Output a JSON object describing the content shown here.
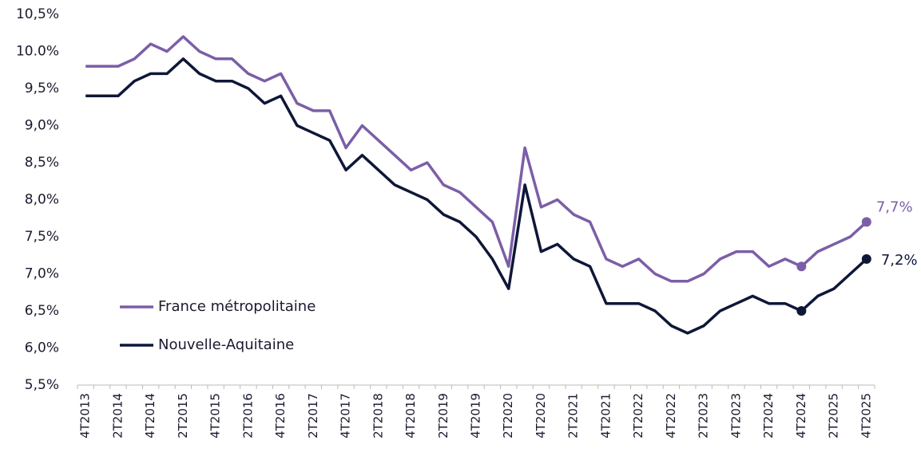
{
  "chart_data": {
    "type": "line",
    "categories": [
      "4T2013",
      null,
      "2T2014",
      null,
      "4T2014",
      null,
      "2T2015",
      null,
      "4T2015",
      null,
      "2T2016",
      null,
      "4T2016",
      null,
      "2T2017",
      null,
      "4T2017",
      null,
      "2T2018",
      null,
      "4T2018",
      null,
      "2T2019",
      null,
      "4T2019",
      null,
      "2T2020",
      null,
      "4T2020",
      null,
      "2T2021",
      null,
      "4T2021",
      null,
      "2T2022",
      null,
      "4T2022",
      null,
      "2T2023",
      null,
      "4T2023",
      null,
      "2T2024",
      null,
      "4T2024",
      null,
      "2T2025",
      null,
      "4T2025"
    ],
    "series": [
      {
        "name": "France métropolitaine",
        "color": "#7b5ea7",
        "values": [
          9.8,
          9.8,
          9.8,
          9.9,
          10.1,
          10.0,
          10.2,
          10.0,
          9.9,
          9.9,
          9.7,
          9.6,
          9.7,
          9.3,
          9.2,
          9.2,
          8.7,
          9.0,
          8.8,
          8.6,
          8.4,
          8.5,
          8.2,
          8.1,
          7.9,
          7.7,
          7.1,
          8.7,
          7.9,
          8.0,
          7.8,
          7.7,
          7.2,
          7.1,
          7.2,
          7.0,
          6.9,
          6.9,
          7.0,
          7.2,
          7.3,
          7.3,
          7.1,
          7.2,
          7.1,
          7.3,
          7.4,
          7.5,
          7.7
        ],
        "value_labels": [
          null,
          null,
          null,
          null,
          null,
          null,
          null,
          null,
          null,
          null,
          null,
          null,
          null,
          null,
          null,
          null,
          null,
          null,
          null,
          null,
          null,
          null,
          null,
          null,
          null,
          null,
          null,
          null,
          null,
          null,
          null,
          null,
          null,
          null,
          null,
          null,
          null,
          null,
          null,
          null,
          null,
          null,
          null,
          null,
          null,
          null,
          null,
          null,
          "7,7%"
        ]
      },
      {
        "name": "Nouvelle-Aquitaine",
        "color": "#0f1738",
        "values": [
          9.4,
          9.4,
          9.4,
          9.6,
          9.7,
          9.7,
          9.9,
          9.7,
          9.6,
          9.6,
          9.5,
          9.3,
          9.4,
          9.0,
          8.9,
          8.8,
          8.4,
          8.6,
          8.4,
          8.2,
          8.1,
          8.0,
          7.8,
          7.7,
          7.5,
          7.2,
          6.8,
          8.2,
          7.3,
          7.4,
          7.2,
          7.1,
          6.6,
          6.6,
          6.6,
          6.5,
          6.3,
          6.2,
          6.3,
          6.5,
          6.6,
          6.7,
          6.6,
          6.6,
          6.5,
          6.7,
          6.8,
          7.0,
          7.2
        ],
        "value_labels": [
          null,
          null,
          null,
          null,
          null,
          null,
          null,
          null,
          null,
          null,
          null,
          null,
          null,
          null,
          null,
          null,
          null,
          null,
          null,
          null,
          null,
          null,
          null,
          null,
          null,
          null,
          null,
          null,
          null,
          null,
          null,
          null,
          null,
          null,
          null,
          null,
          null,
          null,
          null,
          null,
          null,
          null,
          null,
          null,
          null,
          null,
          null,
          null,
          "7,2%"
        ]
      }
    ],
    "highlight": [
      "4T2024",
      "4T2025"
    ],
    "ylim": [
      5.5,
      10.5
    ],
    "yticks": [
      {
        "value": 5.5,
        "label": "5,5%"
      },
      {
        "value": 6.0,
        "label": "6,0%"
      },
      {
        "value": 6.5,
        "label": "6,5%"
      },
      {
        "value": 7.0,
        "label": "7,0%"
      },
      {
        "value": 7.5,
        "label": "7,5%"
      },
      {
        "value": 8.0,
        "label": "8,0%"
      },
      {
        "value": 8.5,
        "label": "8,5%"
      },
      {
        "value": 9.0,
        "label": "9,0%"
      },
      {
        "value": 9.5,
        "label": "9,5%"
      },
      {
        "value": 10.0,
        "label": "10.0%"
      },
      {
        "value": 10.5,
        "label": "10,5%"
      }
    ],
    "grid": false,
    "legend": "lower left"
  }
}
